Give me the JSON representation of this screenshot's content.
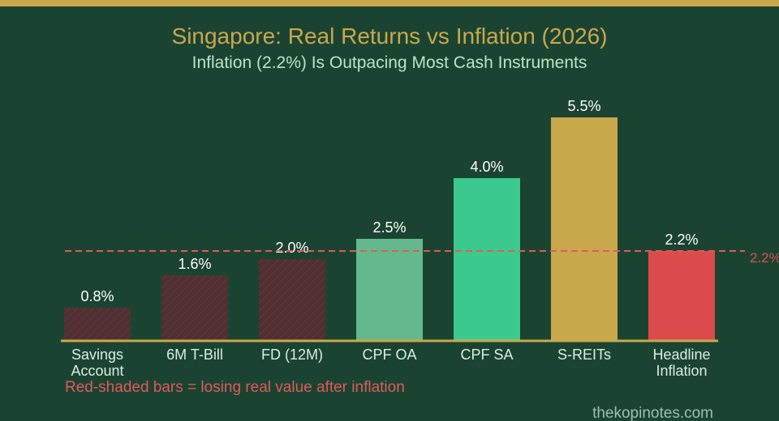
{
  "chart_data": {
    "type": "bar",
    "title": "Singapore: Real Returns vs Inflation (2026)",
    "subtitle": "Inflation (2.2%) Is Outpacing Most Cash Instruments",
    "categories": [
      "Savings Account",
      "6M T-Bill",
      "FD (12M)",
      "CPF OA",
      "CPF SA",
      "S-REITs",
      "Headline Inflation"
    ],
    "category_lines": [
      [
        "Savings",
        "Account"
      ],
      [
        "6M T-Bill"
      ],
      [
        "FD (12M)"
      ],
      [
        "CPF OA"
      ],
      [
        "CPF SA"
      ],
      [
        "S-REITs"
      ],
      [
        "Headline",
        "Inflation"
      ]
    ],
    "values": [
      0.8,
      1.6,
      2.0,
      2.5,
      4.0,
      5.5,
      2.2
    ],
    "value_labels": [
      "0.8%",
      "1.6%",
      "2.0%",
      "2.5%",
      "4.0%",
      "5.5%",
      "2.2%"
    ],
    "bar_colors": [
      "#4f2f31",
      "#4f2f31",
      "#4f2f31",
      "#63b98d",
      "#3bc98d",
      "#c9a84c",
      "#dc4b4b"
    ],
    "hatched": [
      true,
      true,
      true,
      false,
      false,
      false,
      false
    ],
    "ylim": [
      0,
      6
    ],
    "reference_line": {
      "value": 2.2,
      "label": "2.2%",
      "color": "#e05a5a",
      "style": "dashed"
    },
    "grid": false,
    "note": "Red-shaded bars = losing real value after inflation",
    "source": "thekopinotes.com"
  },
  "colors": {
    "background": "#1b4332",
    "accent": "#c9a84c",
    "axis": "#c9a84c"
  }
}
